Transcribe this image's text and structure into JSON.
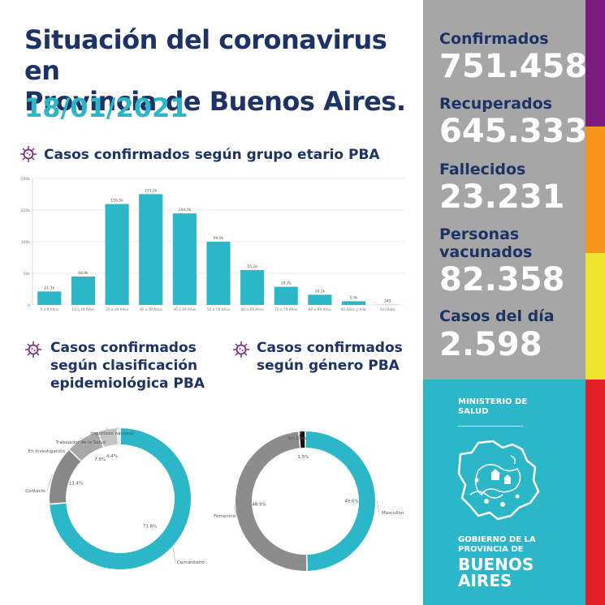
{
  "header": {
    "title_line1": "Situación del coronavirus en",
    "title_line2": "Provincia de Buenos Aires.",
    "date": "18/01/2021"
  },
  "sections": {
    "age": "Casos confirmados según grupo etario PBA",
    "epi_line1": "Casos confirmados",
    "epi_line2": "según clasificación",
    "epi_line3": "epidemiológica PBA",
    "gender_line1": "Casos confirmados",
    "gender_line2": "según género PBA"
  },
  "stats": [
    {
      "label": "Confirmados",
      "value": "751.458"
    },
    {
      "label": "Recuperados",
      "value": "645.333"
    },
    {
      "label": "Fallecidos",
      "value": "23.231"
    },
    {
      "label_line1": "Personas",
      "label_line2": "vacunados",
      "value": "82.358"
    },
    {
      "label": "Casos del día",
      "value": "2.598"
    }
  ],
  "logo": {
    "ministry_line1": "MINISTERIO DE",
    "ministry_line2": "SALUD",
    "gov_line1": "GOBIERNO DE LA",
    "gov_line2": "PROVINCIA DE",
    "gov_line3": "BUENOS",
    "gov_line4": "AIRES"
  },
  "colors": {
    "navy": "#1d3366",
    "teal": "#2bb7c8",
    "gray_panel": "#a6a6a6",
    "stripe_purple": "#7b1c7e",
    "stripe_orange": "#f7941d",
    "stripe_yellow": "#f0e32b",
    "stripe_red": "#e31e24"
  },
  "chart_data": [
    {
      "type": "bar",
      "categories": [
        "0 a 9 Años",
        "10 a 19 Años",
        "20 a 29 Años",
        "30 a 39 Años",
        "40 a 49 Años",
        "50 a 59 Años",
        "60 a 69 Años",
        "70 a 79 Años",
        "80 a 89 Años",
        "90 Años y más",
        "Sin Dato"
      ],
      "values": [
        21300,
        44900,
        159500,
        175200,
        144700,
        99900,
        55200,
        28700,
        16200,
        5900,
        345
      ],
      "data_labels": [
        "21,3k",
        "44,9k",
        "159,5k",
        "175,2k",
        "144,7k",
        "99,9k",
        "55,2k",
        "28,7k",
        "16,2k",
        "5,9k",
        "345"
      ],
      "yticks": [
        "0",
        "50k",
        "100k",
        "150k",
        "200k"
      ],
      "ylim": [
        0,
        200000
      ],
      "grid": true,
      "bar_color": "#2bb7c8"
    },
    {
      "type": "pie",
      "donut": true,
      "categories": [
        "Comunitario",
        "Contacto",
        "En Investigación",
        "Trabajador de la Salud",
        "Importado nacional"
      ],
      "values": [
        73.8,
        13.4,
        7.8,
        4.4,
        0.6
      ],
      "percent_labels": [
        "73.8%",
        "13.4%",
        "7.8%",
        "4.4%",
        ""
      ],
      "colors": [
        "#2bb7c8",
        "#888888",
        "#a8a8a8",
        "#c4c4c4",
        "#dcdcdc"
      ]
    },
    {
      "type": "pie",
      "donut": true,
      "categories": [
        "Masculino",
        "Femenino",
        "Sin Dato"
      ],
      "values": [
        49.6,
        48.9,
        1.5
      ],
      "percent_labels": [
        "49.6%",
        "48.9%",
        "1.5%"
      ],
      "colors": [
        "#2bb7c8",
        "#8c8c8c",
        "#111111"
      ]
    }
  ]
}
